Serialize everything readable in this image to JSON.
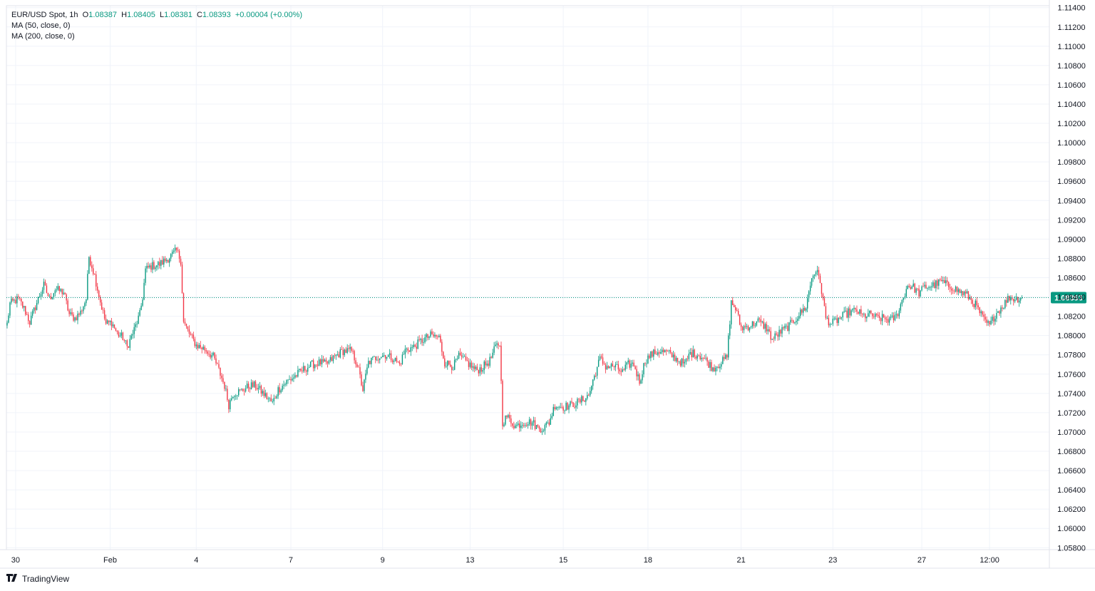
{
  "legend": {
    "symbol": "EUR/USD Spot, 1h",
    "open_label": "O",
    "open": "1.08387",
    "high_label": "H",
    "high": "1.08405",
    "low_label": "L",
    "low": "1.08381",
    "close_label": "C",
    "close": "1.08393",
    "change": "+0.00004 (+0.00%)",
    "ma1": "MA (50, close, 0)",
    "ma2": "MA (200, close, 0)"
  },
  "price_tag": "1.08393",
  "brand": "TradingView",
  "colors": {
    "up": "#089981",
    "down": "#f23645",
    "grid": "#f0f3fa",
    "price_line": "#089981"
  },
  "chart_data": {
    "type": "candlestick",
    "title": "EUR/USD Spot, 1h",
    "ylim": [
      1.0578,
      1.1142
    ],
    "y_ticks": [
      "1.05800",
      "1.06000",
      "1.06200",
      "1.06400",
      "1.06600",
      "1.06800",
      "1.07000",
      "1.07200",
      "1.07400",
      "1.07600",
      "1.07800",
      "1.08000",
      "1.08200",
      "1.08400",
      "1.08600",
      "1.08800",
      "1.09000",
      "1.09200",
      "1.09400",
      "1.09600",
      "1.09800",
      "1.10000",
      "1.10200",
      "1.10400",
      "1.10600",
      "1.10800",
      "1.11000",
      "1.11200",
      "1.11400"
    ],
    "x_ticks": [
      {
        "label": "30",
        "i": 6
      },
      {
        "label": "Feb",
        "i": 73
      },
      {
        "label": "4",
        "i": 134
      },
      {
        "label": "7",
        "i": 201
      },
      {
        "label": "9",
        "i": 266
      },
      {
        "label": "13",
        "i": 328
      },
      {
        "label": "15",
        "i": 394
      },
      {
        "label": "18",
        "i": 454
      },
      {
        "label": "21",
        "i": 520
      },
      {
        "label": "23",
        "i": 585
      },
      {
        "label": "27",
        "i": 648
      },
      {
        "label": "12:00",
        "i": 696
      }
    ],
    "last_price": 1.08393,
    "n_bars": 720,
    "path": [
      [
        0,
        1.0812
      ],
      [
        2,
        1.0833
      ],
      [
        8,
        1.0838
      ],
      [
        12,
        1.0828
      ],
      [
        16,
        1.0814
      ],
      [
        22,
        1.0838
      ],
      [
        26,
        1.0852
      ],
      [
        30,
        1.0838
      ],
      [
        34,
        1.0848
      ],
      [
        40,
        1.0845
      ],
      [
        44,
        1.0822
      ],
      [
        48,
        1.0818
      ],
      [
        52,
        1.0824
      ],
      [
        56,
        1.0838
      ],
      [
        58,
        1.0882
      ],
      [
        62,
        1.0862
      ],
      [
        66,
        1.0835
      ],
      [
        70,
        1.0812
      ],
      [
        74,
        1.0814
      ],
      [
        78,
        1.0802
      ],
      [
        82,
        1.0798
      ],
      [
        85,
        1.0788
      ],
      [
        90,
        1.0806
      ],
      [
        94,
        1.0822
      ],
      [
        96,
        1.084
      ],
      [
        98,
        1.0868
      ],
      [
        102,
        1.0872
      ],
      [
        108,
        1.0874
      ],
      [
        114,
        1.088
      ],
      [
        120,
        1.0888
      ],
      [
        123,
        1.0878
      ],
      [
        125,
        1.0814
      ],
      [
        129,
        1.0802
      ],
      [
        134,
        1.079
      ],
      [
        140,
        1.0786
      ],
      [
        146,
        1.0778
      ],
      [
        150,
        1.0764
      ],
      [
        154,
        1.0748
      ],
      [
        157,
        1.0728
      ],
      [
        160,
        1.074
      ],
      [
        166,
        1.0743
      ],
      [
        172,
        1.0748
      ],
      [
        176,
        1.0748
      ],
      [
        180,
        1.0742
      ],
      [
        184,
        1.0736
      ],
      [
        188,
        1.073
      ],
      [
        192,
        1.0744
      ],
      [
        198,
        1.0752
      ],
      [
        204,
        1.0758
      ],
      [
        210,
        1.0765
      ],
      [
        216,
        1.077
      ],
      [
        222,
        1.0772
      ],
      [
        226,
        1.077
      ],
      [
        232,
        1.0778
      ],
      [
        238,
        1.0784
      ],
      [
        244,
        1.0784
      ],
      [
        248,
        1.077
      ],
      [
        252,
        1.0744
      ],
      [
        256,
        1.0772
      ],
      [
        262,
        1.0778
      ],
      [
        268,
        1.078
      ],
      [
        274,
        1.0776
      ],
      [
        278,
        1.077
      ],
      [
        282,
        1.0785
      ],
      [
        288,
        1.0788
      ],
      [
        294,
        1.0795
      ],
      [
        300,
        1.08
      ],
      [
        306,
        1.0798
      ],
      [
        310,
        1.0772
      ],
      [
        316,
        1.0768
      ],
      [
        320,
        1.0778
      ],
      [
        326,
        1.0772
      ],
      [
        332,
        1.0764
      ],
      [
        336,
        1.0766
      ],
      [
        342,
        1.0774
      ],
      [
        346,
        1.0788
      ],
      [
        349,
        1.0792
      ],
      [
        351,
        1.071
      ],
      [
        354,
        1.0716
      ],
      [
        360,
        1.0706
      ],
      [
        366,
        1.071
      ],
      [
        372,
        1.071
      ],
      [
        376,
        1.0704
      ],
      [
        380,
        1.0704
      ],
      [
        384,
        1.071
      ],
      [
        388,
        1.0728
      ],
      [
        394,
        1.0726
      ],
      [
        400,
        1.0728
      ],
      [
        406,
        1.0732
      ],
      [
        412,
        1.0738
      ],
      [
        416,
        1.0758
      ],
      [
        420,
        1.0776
      ],
      [
        424,
        1.0768
      ],
      [
        430,
        1.0768
      ],
      [
        436,
        1.0762
      ],
      [
        440,
        1.077
      ],
      [
        444,
        1.077
      ],
      [
        448,
        1.0752
      ],
      [
        452,
        1.0774
      ],
      [
        456,
        1.078
      ],
      [
        462,
        1.0784
      ],
      [
        468,
        1.0782
      ],
      [
        474,
        1.0776
      ],
      [
        480,
        1.077
      ],
      [
        484,
        1.0782
      ],
      [
        490,
        1.078
      ],
      [
        494,
        1.0776
      ],
      [
        500,
        1.0766
      ],
      [
        506,
        1.0772
      ],
      [
        510,
        1.0778
      ],
      [
        513,
        1.0834
      ],
      [
        516,
        1.0828
      ],
      [
        520,
        1.0808
      ],
      [
        526,
        1.081
      ],
      [
        532,
        1.0815
      ],
      [
        538,
        1.0808
      ],
      [
        542,
        1.0796
      ],
      [
        548,
        1.0804
      ],
      [
        554,
        1.081
      ],
      [
        560,
        1.082
      ],
      [
        566,
        1.083
      ],
      [
        570,
        1.086
      ],
      [
        573,
        1.0868
      ],
      [
        576,
        1.0856
      ],
      [
        580,
        1.0818
      ],
      [
        584,
        1.0812
      ],
      [
        590,
        1.0818
      ],
      [
        596,
        1.0824
      ],
      [
        602,
        1.0826
      ],
      [
        606,
        1.082
      ],
      [
        612,
        1.0822
      ],
      [
        616,
        1.0818
      ],
      [
        620,
        1.0818
      ],
      [
        626,
        1.0816
      ],
      [
        630,
        1.082
      ],
      [
        634,
        1.0836
      ],
      [
        638,
        1.0852
      ],
      [
        642,
        1.085
      ],
      [
        646,
        1.0844
      ],
      [
        650,
        1.085
      ],
      [
        656,
        1.0852
      ],
      [
        662,
        1.0856
      ],
      [
        666,
        1.0852
      ],
      [
        670,
        1.085
      ],
      [
        674,
        1.0846
      ],
      [
        680,
        1.0842
      ],
      [
        686,
        1.0832
      ],
      [
        692,
        1.0816
      ],
      [
        696,
        1.081
      ],
      [
        700,
        1.0822
      ],
      [
        706,
        1.0832
      ],
      [
        710,
        1.084
      ],
      [
        714,
        1.0838
      ],
      [
        719,
        1.08393
      ]
    ]
  }
}
